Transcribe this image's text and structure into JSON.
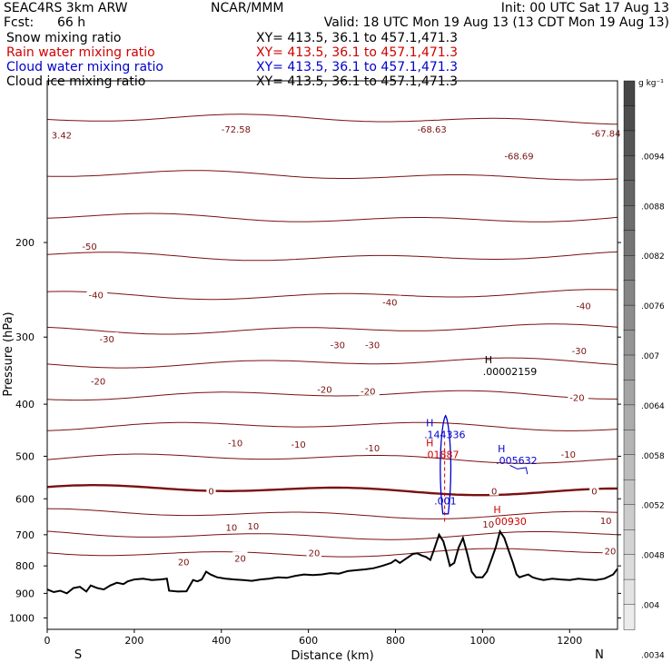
{
  "header": {
    "model": "SEAC4RS  3km ARW",
    "fcst_label": "Fcst:",
    "fcst_value": "66 h",
    "center": "NCAR/MMM",
    "init": "Init: 00 UTC Sat 17 Aug 13",
    "valid": "Valid: 18 UTC Mon 19 Aug 13 (13 CDT Mon 19 Aug 13)"
  },
  "fields": [
    {
      "label": "Snow mixing ratio",
      "xy": "XY= 413.5, 36.1 to 457.1,471.3",
      "color": "#000000"
    },
    {
      "label": "Rain water mixing ratio",
      "xy": "XY= 413.5, 36.1 to 457.1,471.3",
      "color": "#d00000"
    },
    {
      "label": "Cloud water mixing ratio",
      "xy": "XY= 413.5, 36.1 to 457.1,471.3",
      "color": "#0000cc"
    },
    {
      "label": "Cloud ice mixing ratio",
      "xy": "XY= 413.5, 36.1 to 457.1,471.3",
      "color": "#000000"
    }
  ],
  "chart_data": {
    "type": "line",
    "xlabel": "Distance (km)",
    "ylabel": "Pressure (hPa)",
    "xlim": [
      0,
      1310
    ],
    "ylim": [
      1050,
      100
    ],
    "x_ticks": [
      0,
      200,
      400,
      600,
      800,
      1000,
      1200
    ],
    "y_ticks": [
      200,
      300,
      400,
      500,
      600,
      700,
      800,
      900,
      1000
    ],
    "y_scale": "log",
    "end_labels": {
      "left": "S",
      "right": "N"
    },
    "isotherm_color": "#7a1010",
    "terrain_color": "#000000",
    "terrain": {
      "x": [
        0,
        15,
        30,
        45,
        60,
        75,
        90,
        100,
        115,
        130,
        145,
        160,
        175,
        185,
        200,
        220,
        240,
        260,
        275,
        280,
        300,
        320,
        335,
        345,
        355,
        365,
        375,
        390,
        410,
        430,
        450,
        470,
        490,
        510,
        530,
        550,
        570,
        590,
        610,
        630,
        650,
        670,
        690,
        710,
        730,
        750,
        770,
        790,
        800,
        810,
        820,
        830,
        840,
        850,
        860,
        870,
        880,
        890,
        900,
        910,
        918,
        925,
        935,
        945,
        955,
        965,
        975,
        985,
        1000,
        1010,
        1020,
        1030,
        1040,
        1050,
        1060,
        1070,
        1078,
        1085,
        1095,
        1105,
        1115,
        1125,
        1140,
        1160,
        1180,
        1200,
        1220,
        1240,
        1260,
        1280,
        1300,
        1310
      ],
      "p": [
        885,
        895,
        890,
        900,
        880,
        875,
        893,
        870,
        880,
        885,
        870,
        860,
        865,
        855,
        848,
        845,
        850,
        848,
        845,
        890,
        893,
        892,
        850,
        855,
        848,
        820,
        830,
        840,
        845,
        848,
        850,
        853,
        848,
        845,
        840,
        842,
        835,
        830,
        832,
        830,
        825,
        827,
        818,
        815,
        812,
        808,
        800,
        790,
        780,
        790,
        780,
        770,
        760,
        758,
        765,
        770,
        780,
        740,
        700,
        720,
        760,
        800,
        790,
        740,
        710,
        760,
        820,
        840,
        840,
        820,
        780,
        740,
        690,
        710,
        750,
        790,
        830,
        840,
        835,
        830,
        840,
        845,
        850,
        845,
        848,
        850,
        845,
        848,
        850,
        845,
        830,
        810
      ]
    },
    "isotherm_labels": [
      {
        "t": "-68.69",
        "x": 1050,
        "p": 138
      },
      {
        "t": "-67.84",
        "x": 1250,
        "p": 125
      },
      {
        "t": "-68.63",
        "x": 850,
        "p": 123
      },
      {
        "t": "-72.58",
        "x": 400,
        "p": 123
      },
      {
        "t": "3.42",
        "x": 10,
        "p": 126
      },
      {
        "t": "-50",
        "x": 80,
        "p": 203
      },
      {
        "t": "-40",
        "x": 95,
        "p": 250
      },
      {
        "t": "-40",
        "x": 770,
        "p": 258
      },
      {
        "t": "-40",
        "x": 1215,
        "p": 262
      },
      {
        "t": "-30",
        "x": 120,
        "p": 302
      },
      {
        "t": "-30",
        "x": 650,
        "p": 310
      },
      {
        "t": "-30",
        "x": 730,
        "p": 310
      },
      {
        "t": "-30",
        "x": 1205,
        "p": 318
      },
      {
        "t": "-20",
        "x": 100,
        "p": 362
      },
      {
        "t": "-20",
        "x": 620,
        "p": 375
      },
      {
        "t": "-20",
        "x": 720,
        "p": 378
      },
      {
        "t": "-20",
        "x": 1200,
        "p": 388
      },
      {
        "t": "-10",
        "x": 415,
        "p": 472
      },
      {
        "t": "-10",
        "x": 560,
        "p": 475
      },
      {
        "t": "-10",
        "x": 730,
        "p": 482
      },
      {
        "t": "-10",
        "x": 1180,
        "p": 495
      },
      {
        "t": "0",
        "x": 370,
        "p": 580
      },
      {
        "t": "0",
        "x": 1020,
        "p": 580
      },
      {
        "t": "0",
        "x": 1250,
        "p": 580
      },
      {
        "t": "10",
        "x": 410,
        "p": 677
      },
      {
        "t": "10",
        "x": 460,
        "p": 674
      },
      {
        "t": "10",
        "x": 1000,
        "p": 668
      },
      {
        "t": "10",
        "x": 1270,
        "p": 658
      },
      {
        "t": "20",
        "x": 300,
        "p": 785
      },
      {
        "t": "20",
        "x": 430,
        "p": 773
      },
      {
        "t": "20",
        "x": 600,
        "p": 756
      },
      {
        "t": "20",
        "x": 1280,
        "p": 750
      }
    ],
    "extrema": [
      {
        "kind": "H",
        "value": ".00002159",
        "x": 1005,
        "p": 345,
        "color": "#000000"
      },
      {
        "kind": "H",
        "value": ".144336",
        "x": 870,
        "p": 452,
        "color": "#0000cc"
      },
      {
        "kind": "H",
        "value": ".01887",
        "x": 870,
        "p": 492,
        "color": "#d00000"
      },
      {
        "kind": "H",
        "value": ".005632",
        "x": 1035,
        "p": 505,
        "color": "#0000cc"
      },
      {
        "kind": "",
        "value": ".001",
        "x": 893,
        "p": 600,
        "color": "#0000cc"
      },
      {
        "kind": "H",
        "value": ".00930",
        "x": 1025,
        "p": 655,
        "color": "#d00000"
      }
    ],
    "colorbar": {
      "unit": "g kg⁻¹",
      "labels": [
        ".0094",
        ".0088",
        ".0082",
        ".0076",
        ".007",
        ".0064",
        ".0058",
        ".0052",
        ".0048",
        ".004",
        ".0034"
      ]
    }
  }
}
